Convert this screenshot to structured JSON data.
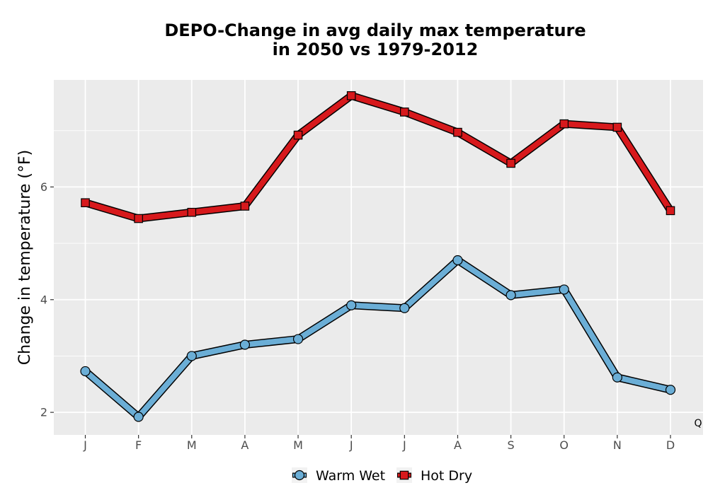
{
  "chart_data": {
    "type": "line",
    "title_lines": [
      "DEPO-Change in avg daily max temperature",
      "in 2050 vs 1979-2012"
    ],
    "xlabel": "",
    "ylabel": "Change in temperature (°F)",
    "categories": [
      "J",
      "F",
      "M",
      "A",
      "M",
      "J",
      "J",
      "A",
      "S",
      "O",
      "N",
      "D"
    ],
    "ylim": [
      1.6,
      7.9
    ],
    "yticks": [
      2,
      4,
      6
    ],
    "grid": true,
    "legend_position": "bottom",
    "corner_note": "Q",
    "series": [
      {
        "name": "Warm Wet",
        "marker": "circle",
        "color": "#6baed6",
        "values": [
          2.73,
          1.92,
          3.0,
          3.2,
          3.3,
          3.9,
          3.85,
          4.7,
          4.08,
          4.18,
          2.62,
          2.4
        ]
      },
      {
        "name": "Hot Dry",
        "marker": "square",
        "color": "#d7191c",
        "values": [
          5.72,
          5.44,
          5.55,
          5.66,
          6.92,
          7.62,
          7.33,
          6.97,
          6.42,
          7.12,
          7.06,
          5.58
        ]
      }
    ]
  },
  "colors": {
    "panel": "#ebebeb",
    "grid_major": "#ffffff",
    "outline": "#000000"
  }
}
